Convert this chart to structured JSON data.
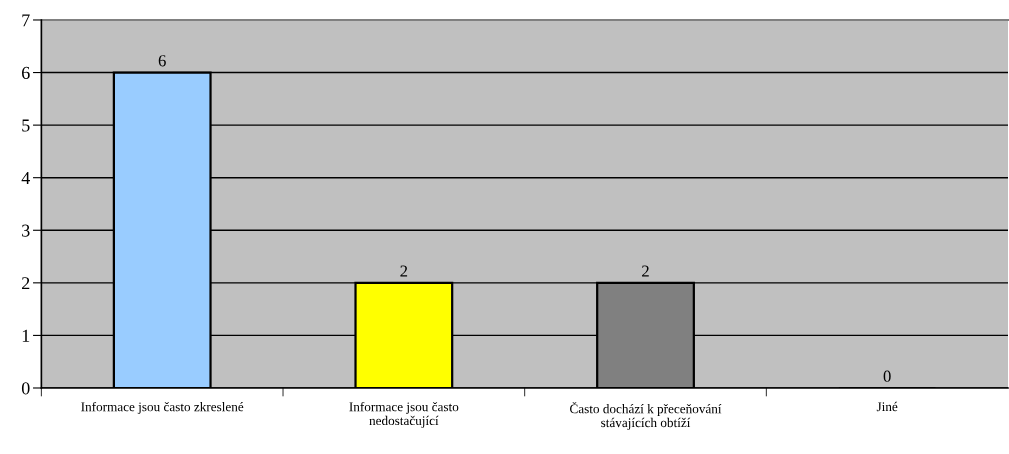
{
  "chart_data": {
    "type": "bar",
    "categories": [
      "Informace jsou často zkreslené",
      "Informace jsou často\nnedostačující",
      "Často dochází k přeceňování\nstávajících obtíží",
      "Jiné"
    ],
    "values": [
      6,
      2,
      2,
      0
    ],
    "colors": [
      "#99ccff",
      "#ffff00",
      "#808080",
      "#000000"
    ],
    "ylim": [
      0,
      7
    ],
    "yticks": [
      0,
      1,
      2,
      3,
      4,
      5,
      6,
      7
    ],
    "grid": "y",
    "data_labels": true
  }
}
